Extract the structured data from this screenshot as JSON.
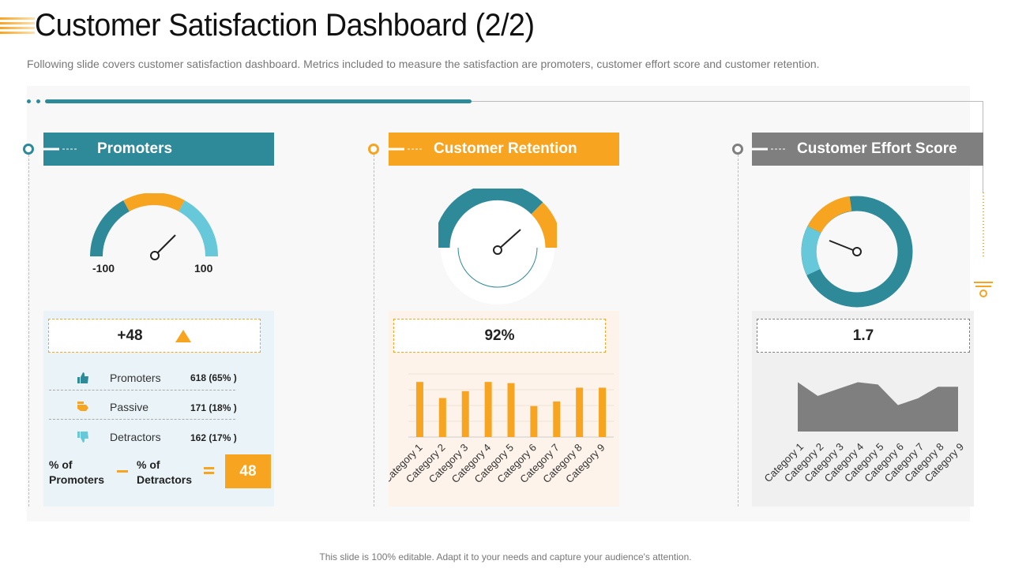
{
  "title": "Customer Satisfaction Dashboard (2/2)",
  "subtitle": "Following slide covers customer satisfaction dashboard. Metrics included to measure the satisfaction are promoters, customer effort score and customer retention.",
  "footer": "This slide is 100% editable. Adapt it to your needs and capture your audience's attention.",
  "colors": {
    "teal": "#2e8a99",
    "orange": "#f7a420",
    "gray": "#7f7f7f",
    "light_blue": "#66c8d9",
    "area": "#7f7f7f"
  },
  "promoters": {
    "header": "Promoters",
    "gauge_min": "-100",
    "gauge_max": "100",
    "score": "+48",
    "trend_icon": "triangle-up-icon",
    "rows": [
      {
        "icon": "thumbs-up-icon",
        "label": "Promoters",
        "value": "618 (65% )"
      },
      {
        "icon": "thumbs-side-icon",
        "label": "Passive",
        "value": "171 (18% )"
      },
      {
        "icon": "thumbs-down-icon",
        "label": "Detractors",
        "value": "162 (17% )"
      }
    ],
    "calc_a_line1": "% of",
    "calc_a_line2": "Promoters",
    "calc_b_line1": "% of",
    "calc_b_line2": "Detractors",
    "result": "48"
  },
  "retention": {
    "header": "Customer Retention",
    "value": "92%"
  },
  "effort": {
    "header": "Customer Effort Score",
    "value": "1.7"
  },
  "chart_data": [
    {
      "type": "bar",
      "categories": [
        "Category 1",
        "Category 2",
        "Category 3",
        "Category 4",
        "Category 5",
        "Category 6",
        "Category 7",
        "Category 8",
        "Category 9"
      ],
      "values": [
        4.8,
        3.4,
        4.0,
        4.8,
        4.7,
        2.7,
        3.1,
        4.3,
        4.3
      ],
      "ylim": [
        0,
        5.5
      ]
    },
    {
      "type": "area",
      "categories": [
        "Category 1",
        "Category 2",
        "Category 3",
        "Category 4",
        "Category 5",
        "Category 6",
        "Category 7",
        "Category 8",
        "Category 9"
      ],
      "values": [
        4.3,
        3.1,
        3.7,
        4.3,
        4.1,
        2.3,
        2.9,
        3.9,
        3.9
      ],
      "ylim": [
        0,
        5.5
      ]
    }
  ]
}
